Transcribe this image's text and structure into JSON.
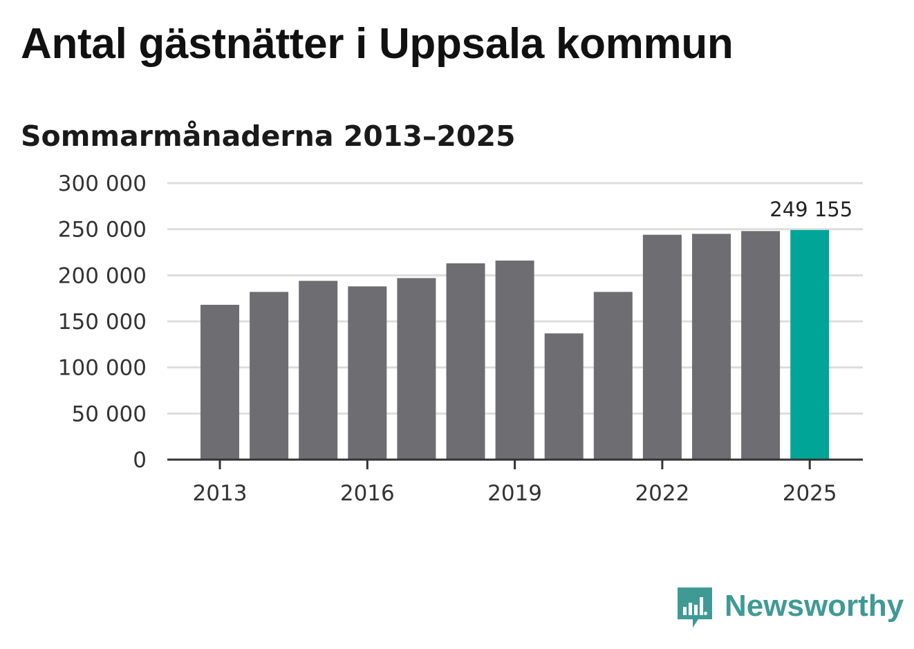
{
  "header": {
    "title": "Antal gästnätter i Uppsala kommun",
    "subtitle": "Sommarmånaderna 2013–2025"
  },
  "brand": {
    "name": "Newsworthy",
    "icon": "newsworthy-logo-icon",
    "color": "#3f9a96"
  },
  "chart_data": {
    "type": "bar",
    "title": "Antal gästnätter i Uppsala kommun",
    "subtitle": "Sommarmånaderna 2013–2025",
    "xlabel": "",
    "ylabel": "",
    "categories": [
      "2013",
      "2014",
      "2015",
      "2016",
      "2017",
      "2018",
      "2019",
      "2020",
      "2021",
      "2022",
      "2023",
      "2024",
      "2025"
    ],
    "values": [
      168000,
      182000,
      194000,
      188000,
      197000,
      213000,
      216000,
      137000,
      182000,
      244000,
      245000,
      248000,
      249155
    ],
    "ylim": [
      0,
      300000
    ],
    "yticks": [
      0,
      50000,
      100000,
      150000,
      200000,
      250000,
      300000
    ],
    "ytick_labels": [
      "0",
      "50 000",
      "100 000",
      "150 000",
      "200 000",
      "250 000",
      "300 000"
    ],
    "xtick_labels": [
      "2013",
      "2016",
      "2019",
      "2022",
      "2025"
    ],
    "data_labels": [
      {
        "category": "2025",
        "text": "249 155"
      }
    ],
    "grid": true,
    "legend": "none",
    "colors": {
      "bar": "#6e6d72",
      "highlight": "#00a597",
      "grid": "#dddddd",
      "axis": "#333333"
    },
    "highlight_category": "2025"
  }
}
